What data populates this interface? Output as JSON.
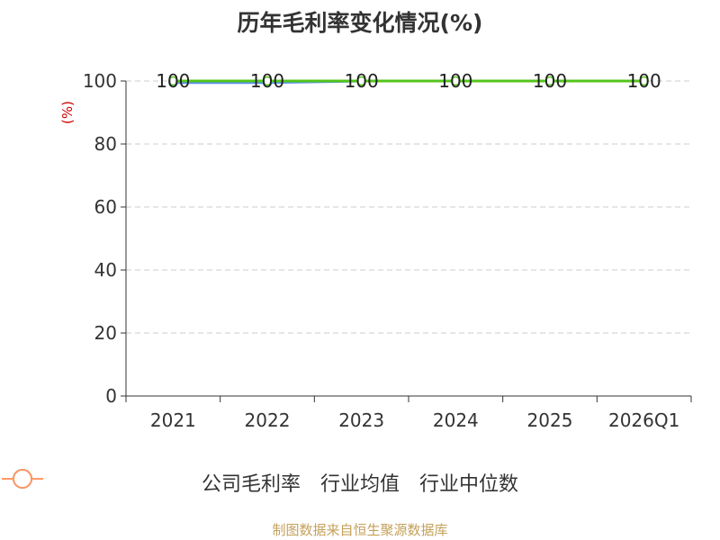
{
  "source_note": "制图数据来自恒生聚源数据库",
  "chart_data": {
    "type": "line",
    "title": "历年毛利率变化情况(%)",
    "ylabel": "(%)",
    "xlabel": "",
    "categories": [
      "2021",
      "2022",
      "2023",
      "2024",
      "2025",
      "2026Q1"
    ],
    "ylim": [
      0,
      100
    ],
    "yticks": [
      0,
      20,
      40,
      60,
      80,
      100
    ],
    "grid": true,
    "legend_position": "bottom",
    "series": [
      {
        "name": "公司毛利率",
        "color": "#52c41a",
        "values": [
          100,
          100,
          100,
          100,
          100,
          100
        ],
        "show_labels": true
      },
      {
        "name": "行业均值",
        "color": "#5b8ff9",
        "values": [
          99.5,
          99.5,
          100,
          100,
          null,
          null
        ],
        "show_labels": false
      },
      {
        "name": "行业中位数",
        "color": "#ff9966",
        "values": [
          100,
          100,
          100,
          100,
          null,
          null
        ],
        "show_labels": false
      }
    ],
    "data_labels": [
      "100",
      "100",
      "100",
      "100",
      "100",
      "100"
    ]
  }
}
